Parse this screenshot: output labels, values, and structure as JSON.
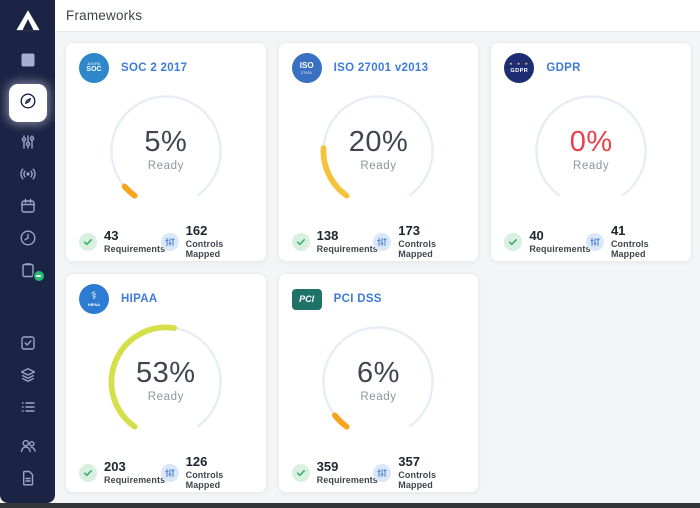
{
  "header": {
    "title": "Frameworks"
  },
  "sidebar": {
    "icons": [
      "aptible-logo",
      "square",
      "compass",
      "tune",
      "broadcast",
      "calendar",
      "clock",
      "clipboard",
      "task-check",
      "layers",
      "list",
      "team",
      "document"
    ],
    "active_icon": "compass",
    "clipboard_badge_color": "#27b96e"
  },
  "theme": {
    "sidebar_bg": "#1c2446",
    "sidebar_icon": "#9ba6c6",
    "accent_blue": "#3d7cd8",
    "gauge_track": "#e7edf4",
    "orange": "#f8a41f",
    "yellow": "#f5c23c",
    "lime": "#d6de49",
    "red": "#e9404e"
  },
  "cards": [
    {
      "type": "soc2",
      "title": "SOC 2 2017",
      "badge_line1": "AICPA",
      "badge_line2": "SOC",
      "badge_bg": "#2d87c8",
      "percent": 5,
      "percent_text": "5%",
      "ready_label": "Ready",
      "gauge_color": "#f8a41f",
      "value_color": "#3f4650",
      "requirements_value": "43",
      "requirements_label": "Requirements",
      "controls_value": "162",
      "controls_label": "Controls Mapped"
    },
    {
      "type": "iso",
      "title": "ISO 27001 v2013",
      "badge_line1": "ISO",
      "badge_line2": "27001",
      "badge_bg": "#3a70c2",
      "percent": 20,
      "percent_text": "20%",
      "ready_label": "Ready",
      "gauge_color": "#f5c23c",
      "value_color": "#3f4650",
      "requirements_value": "138",
      "requirements_label": "Requirements",
      "controls_value": "173",
      "controls_label": "Controls Mapped"
    },
    {
      "type": "gdpr",
      "title": "GDPR",
      "badge_line1": "★ ★ ★",
      "badge_line2": "GDPR",
      "badge_bg": "#1d2d73",
      "percent": 0,
      "percent_text": "0%",
      "ready_label": "Ready",
      "gauge_color": null,
      "value_color": "#e9404e",
      "requirements_value": "40",
      "requirements_label": "Requirements",
      "controls_value": "41",
      "controls_label": "Controls Mapped"
    },
    {
      "type": "hipaa",
      "title": "HIPAA",
      "badge_line1": "⚕",
      "badge_line2": "HIPAA",
      "badge_bg": "#2e7bd3",
      "percent": 53,
      "percent_text": "53%",
      "ready_label": "Ready",
      "gauge_color": "#d6de49",
      "value_color": "#3f4650",
      "requirements_value": "203",
      "requirements_label": "Requirements",
      "controls_value": "126",
      "controls_label": "Controls Mapped"
    },
    {
      "type": "pci",
      "title": "PCI DSS",
      "badge_line1": "PCI",
      "badge_line2": "",
      "badge_bg": "#1f7268",
      "percent": 6,
      "percent_text": "6%",
      "ready_label": "Ready",
      "gauge_color": "#f8a41f",
      "value_color": "#3f4650",
      "requirements_value": "359",
      "requirements_label": "Requirements",
      "controls_value": "357",
      "controls_label": "Controls Mapped"
    }
  ]
}
